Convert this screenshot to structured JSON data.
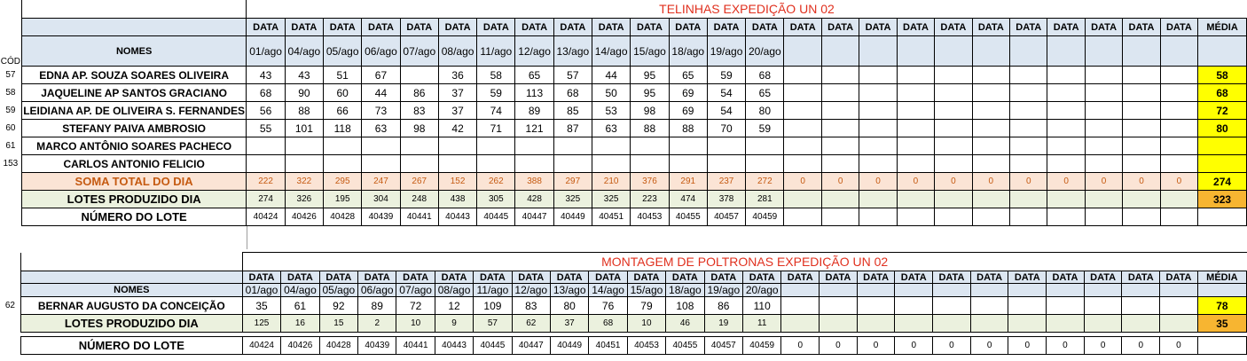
{
  "section1": {
    "title": "TELINHAS EXPEDIÇÃO UN 02",
    "data_label": "DATA",
    "media_label": "MÉDIA",
    "cod_label": "CÓD",
    "nomes_label": "NOMES",
    "dates": [
      "01/ago",
      "04/ago",
      "05/ago",
      "06/ago",
      "07/ago",
      "08/ago",
      "11/ago",
      "12/ago",
      "13/ago",
      "14/ago",
      "15/ago",
      "18/ago",
      "19/ago",
      "20/ago",
      "",
      "",
      "",
      "",
      "",
      "",
      "",
      "",
      "",
      "",
      ""
    ],
    "people": [
      {
        "cod": "57",
        "name": "EDNA AP. SOUZA SOARES OLIVEIRA",
        "values": [
          "43",
          "43",
          "51",
          "67",
          "",
          "36",
          "58",
          "65",
          "57",
          "44",
          "95",
          "65",
          "59",
          "68",
          "",
          "",
          "",
          "",
          "",
          "",
          "",
          "",
          "",
          "",
          ""
        ],
        "media": "58"
      },
      {
        "cod": "58",
        "name": "JAQUELINE AP SANTOS GRACIANO",
        "values": [
          "68",
          "90",
          "60",
          "44",
          "86",
          "37",
          "59",
          "113",
          "68",
          "50",
          "95",
          "69",
          "54",
          "65",
          "",
          "",
          "",
          "",
          "",
          "",
          "",
          "",
          "",
          "",
          ""
        ],
        "media": "68"
      },
      {
        "cod": "59",
        "name": "LEIDIANA AP. DE OLIVEIRA S. FERNANDES",
        "values": [
          "56",
          "88",
          "66",
          "73",
          "83",
          "37",
          "74",
          "89",
          "85",
          "53",
          "98",
          "69",
          "54",
          "80",
          "",
          "",
          "",
          "",
          "",
          "",
          "",
          "",
          "",
          "",
          ""
        ],
        "media": "72"
      },
      {
        "cod": "60",
        "name": "STEFANY PAIVA AMBROSIO",
        "values": [
          "55",
          "101",
          "118",
          "63",
          "98",
          "42",
          "71",
          "121",
          "87",
          "63",
          "88",
          "88",
          "70",
          "59",
          "",
          "",
          "",
          "",
          "",
          "",
          "",
          "",
          "",
          "",
          ""
        ],
        "media": "80"
      },
      {
        "cod": "61",
        "name": "MARCO ANTÔNIO SOARES PACHECO",
        "values": [
          "",
          "",
          "",
          "",
          "",
          "",
          "",
          "",
          "",
          "",
          "",
          "",
          "",
          "",
          "",
          "",
          "",
          "",
          "",
          "",
          "",
          "",
          "",
          "",
          ""
        ],
        "media": ""
      },
      {
        "cod": "153",
        "name": "CARLOS ANTONIO FELICIO",
        "values": [
          "",
          "",
          "",
          "",
          "",
          "",
          "",
          "",
          "",
          "",
          "",
          "",
          "",
          "",
          "",
          "",
          "",
          "",
          "",
          "",
          "",
          "",
          "",
          "",
          ""
        ],
        "media": ""
      }
    ],
    "soma": {
      "label": "SOMA TOTAL DO DIA",
      "values": [
        "222",
        "322",
        "295",
        "247",
        "267",
        "152",
        "262",
        "388",
        "297",
        "210",
        "376",
        "291",
        "237",
        "272",
        "0",
        "0",
        "0",
        "0",
        "0",
        "0",
        "0",
        "0",
        "0",
        "0",
        "0"
      ],
      "media": "274"
    },
    "lotes": {
      "label": "LOTES PRODUZIDO DIA",
      "values": [
        "274",
        "326",
        "195",
        "304",
        "248",
        "438",
        "305",
        "428",
        "325",
        "325",
        "223",
        "474",
        "378",
        "281",
        "",
        "",
        "",
        "",
        "",
        "",
        "",
        "",
        "",
        "",
        ""
      ],
      "media": "323"
    },
    "numero": {
      "label": "NÚMERO DO LOTE",
      "values": [
        "40424",
        "40426",
        "40428",
        "40439",
        "40441",
        "40443",
        "40445",
        "40447",
        "40449",
        "40451",
        "40453",
        "40455",
        "40457",
        "40459",
        "",
        "",
        "",
        "",
        "",
        "",
        "",
        "",
        "",
        "",
        ""
      ],
      "media": ""
    }
  },
  "section2": {
    "title": "MONTAGEM DE POLTRONAS EXPEDIÇÃO UN 02",
    "data_label": "DATA",
    "media_label": "MÉDIA",
    "nomes_label": "NOMES",
    "dates": [
      "01/ago",
      "04/ago",
      "05/ago",
      "06/ago",
      "07/ago",
      "08/ago",
      "11/ago",
      "12/ago",
      "13/ago",
      "14/ago",
      "15/ago",
      "18/ago",
      "19/ago",
      "20/ago",
      "",
      "",
      "",
      "",
      "",
      "",
      "",
      "",
      "",
      "",
      ""
    ],
    "people": [
      {
        "cod": "62",
        "name": "BERNAR AUGUSTO DA CONCEIÇÃO",
        "values": [
          "35",
          "61",
          "92",
          "89",
          "72",
          "12",
          "109",
          "83",
          "80",
          "76",
          "79",
          "108",
          "86",
          "110",
          "",
          "",
          "",
          "",
          "",
          "",
          "",
          "",
          "",
          "",
          ""
        ],
        "media": "78"
      }
    ],
    "lotes": {
      "label": "LOTES PRODUZIDO DIA",
      "values": [
        "125",
        "16",
        "15",
        "2",
        "10",
        "9",
        "57",
        "62",
        "37",
        "68",
        "10",
        "46",
        "19",
        "11",
        "",
        "",
        "",
        "",
        "",
        "",
        "",
        "",
        "",
        "",
        ""
      ],
      "media": "35"
    },
    "numero": {
      "label": "NÚMERO DO LOTE",
      "values": [
        "40424",
        "40426",
        "40428",
        "40439",
        "40441",
        "40443",
        "40445",
        "40447",
        "40449",
        "40451",
        "40453",
        "40455",
        "40457",
        "40459",
        "0",
        "0",
        "0",
        "0",
        "0",
        "0",
        "0",
        "0",
        "0",
        "0",
        "0"
      ],
      "media": ""
    }
  }
}
